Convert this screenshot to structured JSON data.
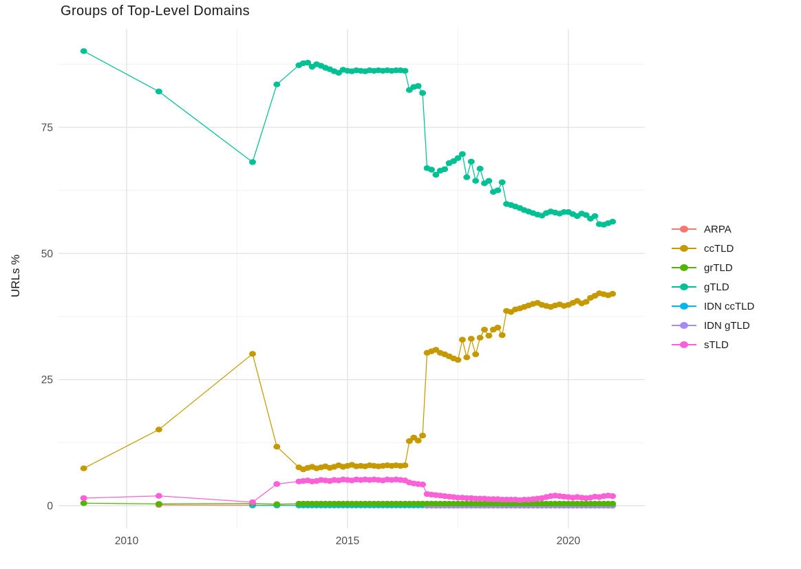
{
  "chart_data": {
    "type": "line",
    "title": "Groups of Top-Level Domains",
    "xlabel": "",
    "ylabel": "URLs %",
    "grid": true,
    "legend_position": "right",
    "xlim": [
      2008.45,
      2021.75
    ],
    "ylim": [
      -4.5,
      94.4
    ],
    "x_ticks": {
      "labels": [
        "2010",
        "2015",
        "2020"
      ],
      "years": [
        2010,
        2015,
        2020
      ]
    },
    "x_minor": [
      2012.5,
      2017.5
    ],
    "y_ticks": {
      "labels": [
        "0",
        "25",
        "50",
        "75"
      ],
      "values": [
        0,
        25,
        50,
        75
      ]
    },
    "y_minor": [
      12.5,
      37.5,
      62.5,
      87.5
    ],
    "legend_order": [
      "ARPA",
      "ccTLD",
      "grTLD",
      "gTLD",
      "IDN ccTLD",
      "IDN gTLD",
      "sTLD"
    ],
    "draw_order": [
      "ARPA",
      "IDN ccTLD",
      "IDN gTLD",
      "grTLD",
      "sTLD",
      "ccTLD",
      "gTLD"
    ],
    "series": [
      {
        "name": "ARPA",
        "color": "#F8766D",
        "sparse": [
          [
            2010.73,
            0.15
          ],
          [
            2012.85,
            0.1
          ],
          [
            2013.4,
            0.1
          ]
        ],
        "dense": {
          "start": 2013.9,
          "step": 0.1,
          "const": 0.1,
          "count": 72
        }
      },
      {
        "name": "ccTLD",
        "color": "#C49A00",
        "sparse": [
          [
            2009.03,
            7.4
          ],
          [
            2010.73,
            15.1
          ],
          [
            2012.85,
            30.1
          ],
          [
            2013.4,
            11.7
          ]
        ],
        "dense": {
          "start": 2013.9,
          "step": 0.1,
          "values": [
            7.6,
            7.2,
            7.5,
            7.7,
            7.4,
            7.6,
            7.8,
            7.5,
            7.7,
            8.0,
            7.7,
            7.9,
            8.1,
            7.8,
            7.9,
            7.8,
            8.0,
            7.9,
            7.8,
            7.9,
            8.0,
            7.9,
            8.0,
            7.9,
            8.0,
            12.8,
            13.5,
            12.9,
            13.9,
            30.3,
            30.6,
            30.9,
            30.3,
            30.0,
            29.6,
            29.2,
            28.9,
            32.9,
            29.4,
            33.1,
            30.0,
            33.3,
            34.9,
            33.7,
            34.9,
            35.3,
            33.8,
            38.6,
            38.4,
            38.9,
            39.1,
            39.4,
            39.7,
            40.0,
            40.2,
            39.8,
            39.6,
            39.4,
            39.7,
            39.9,
            39.6,
            39.8,
            40.2,
            40.6,
            40.1,
            40.4,
            41.2,
            41.6,
            42.1,
            41.9,
            41.7,
            42.0
          ]
        }
      },
      {
        "name": "grTLD",
        "color": "#53B400",
        "sparse": [
          [
            2009.03,
            0.5
          ],
          [
            2010.73,
            0.35
          ],
          [
            2012.85,
            0.45
          ],
          [
            2013.4,
            0.3
          ]
        ],
        "dense": {
          "start": 2013.9,
          "step": 0.1,
          "const": 0.4,
          "count": 72
        }
      },
      {
        "name": "gTLD",
        "color": "#00C094",
        "sparse": [
          [
            2009.03,
            90.1
          ],
          [
            2010.73,
            82.1
          ],
          [
            2012.85,
            68.1
          ],
          [
            2013.4,
            83.5
          ]
        ],
        "dense": {
          "start": 2013.9,
          "step": 0.1,
          "values": [
            87.3,
            87.7,
            87.8,
            87.0,
            87.5,
            87.2,
            86.8,
            86.5,
            86.1,
            85.8,
            86.4,
            86.2,
            86.1,
            86.3,
            86.2,
            86.1,
            86.3,
            86.2,
            86.3,
            86.2,
            86.3,
            86.2,
            86.3,
            86.3,
            86.2,
            82.4,
            83.0,
            83.2,
            81.8,
            66.9,
            66.6,
            65.6,
            66.4,
            66.7,
            67.9,
            68.3,
            68.9,
            69.7,
            65.1,
            68.2,
            64.4,
            66.8,
            63.9,
            64.4,
            62.2,
            62.5,
            64.1,
            59.8,
            59.6,
            59.3,
            59.0,
            58.6,
            58.3,
            58.0,
            57.7,
            57.5,
            58.0,
            58.3,
            58.1,
            57.9,
            58.2,
            58.2,
            57.8,
            57.4,
            57.9,
            57.6,
            56.9,
            57.4,
            55.8,
            55.7,
            56.0,
            56.3
          ]
        }
      },
      {
        "name": "IDN ccTLD",
        "color": "#00B6EB",
        "sparse": [
          [
            2012.85,
            0.05
          ],
          [
            2013.4,
            0.05
          ]
        ],
        "dense": {
          "start": 2013.9,
          "step": 0.1,
          "const": 0.05,
          "count": 72
        }
      },
      {
        "name": "IDN gTLD",
        "color": "#A58AFF",
        "sparse": [],
        "dense": {
          "start": 2016.8,
          "step": 0.1,
          "const": 0.0,
          "count": 43
        }
      },
      {
        "name": "sTLD",
        "color": "#FB61D7",
        "sparse": [
          [
            2009.03,
            1.5
          ],
          [
            2010.73,
            1.95
          ],
          [
            2012.85,
            0.7
          ],
          [
            2013.4,
            4.3
          ]
        ],
        "dense": {
          "start": 2013.9,
          "step": 0.1,
          "values": [
            4.8,
            4.9,
            5.0,
            4.8,
            4.9,
            5.1,
            5.0,
            4.9,
            5.1,
            5.0,
            5.2,
            5.1,
            5.0,
            5.2,
            5.1,
            5.2,
            5.1,
            5.2,
            5.1,
            5.0,
            5.2,
            5.1,
            5.2,
            5.1,
            5.0,
            4.6,
            4.4,
            4.3,
            4.2,
            2.3,
            2.2,
            2.1,
            2.0,
            1.9,
            1.8,
            1.7,
            1.6,
            1.6,
            1.5,
            1.5,
            1.4,
            1.4,
            1.4,
            1.3,
            1.3,
            1.3,
            1.2,
            1.2,
            1.2,
            1.2,
            1.1,
            1.2,
            1.2,
            1.3,
            1.4,
            1.5,
            1.7,
            1.9,
            2.0,
            1.9,
            1.8,
            1.7,
            1.6,
            1.7,
            1.6,
            1.5,
            1.6,
            1.8,
            1.7,
            1.9,
            2.0,
            1.9
          ]
        }
      }
    ],
    "style": {
      "major_grid_color": "#E3E3E3",
      "minor_grid_color": "#F0F0F0",
      "tick_label_color": "#4d4d4d",
      "text_color": "#1a1a1a",
      "background": "#ffffff"
    }
  }
}
